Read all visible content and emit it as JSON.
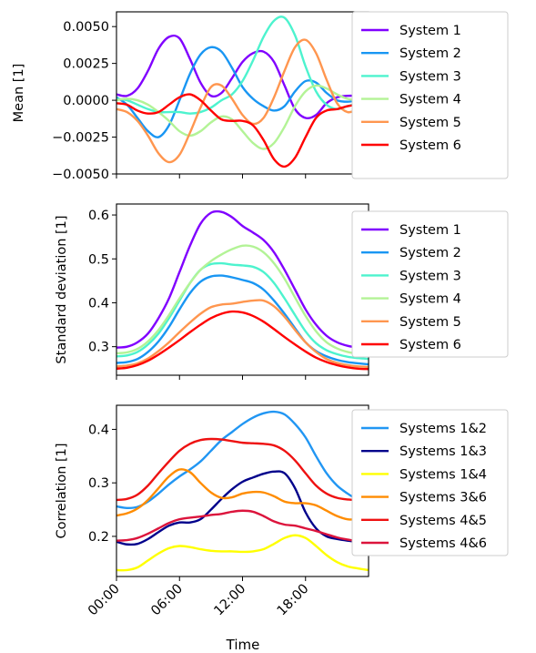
{
  "figure": {
    "xlabel": "Time"
  },
  "chart_data": [
    {
      "type": "line",
      "ylabel": "Mean [1]",
      "xlim": [
        0,
        24
      ],
      "ylim": [
        -0.005,
        0.006
      ],
      "yticks": [
        -0.005,
        -0.0025,
        0.0,
        0.0025,
        0.005
      ],
      "ytick_labels": [
        "−0.0050",
        "−0.0025",
        "0.0000",
        "0.0025",
        "0.0050"
      ],
      "xticks": [
        0,
        6,
        12,
        18
      ],
      "x": [
        0,
        1,
        2,
        3,
        4,
        5,
        6,
        7,
        8,
        9,
        10,
        11,
        12,
        13,
        14,
        15,
        16,
        17,
        18,
        19,
        20,
        21,
        22,
        23,
        24
      ],
      "legend_position": "outside-right",
      "series": [
        {
          "name": "System 1",
          "color": "#8000ff",
          "values": [
            0.0004,
            0.0003,
            0.0008,
            0.002,
            0.0035,
            0.0043,
            0.0042,
            0.0028,
            0.0012,
            0.0003,
            0.0005,
            0.0015,
            0.0026,
            0.0032,
            0.0033,
            0.0026,
            0.001,
            -0.0006,
            -0.0012,
            -0.001,
            -0.0002,
            0.0002,
            0.0003,
            0.0003,
            0.0003
          ]
        },
        {
          "name": "System 2",
          "color": "#1996f3",
          "values": [
            0.0002,
            -0.0003,
            -0.0012,
            -0.0021,
            -0.0025,
            -0.0017,
            0.0,
            0.0018,
            0.0031,
            0.0036,
            0.0033,
            0.0022,
            0.0009,
            0.0001,
            -0.0004,
            -0.0007,
            -0.0004,
            0.0006,
            0.0013,
            0.0012,
            0.0005,
            0.0,
            -0.0001,
            0.0,
            0.0001
          ]
        },
        {
          "name": "System 3",
          "color": "#4df3ce",
          "values": [
            0.0001,
            0.0,
            -0.0003,
            -0.0006,
            -0.0008,
            -0.0008,
            -0.0008,
            -0.0009,
            -0.0008,
            -0.0005,
            0.0,
            0.0004,
            0.0013,
            0.0027,
            0.0043,
            0.0054,
            0.0056,
            0.0044,
            0.0023,
            0.0006,
            -0.0003,
            -0.0006,
            -0.0004,
            -0.0002,
            0.0
          ]
        },
        {
          "name": "System 4",
          "color": "#b3f396",
          "values": [
            0.0,
            0.0001,
            0.0,
            -0.0003,
            -0.0008,
            -0.0014,
            -0.0021,
            -0.0024,
            -0.0021,
            -0.0015,
            -0.0011,
            -0.0013,
            -0.0021,
            -0.0029,
            -0.0033,
            -0.0029,
            -0.0018,
            -0.0004,
            0.0006,
            0.001,
            0.0008,
            0.0004,
            0.0001,
            0.0,
            0.0
          ]
        },
        {
          "name": "System 5",
          "color": "#ff964f",
          "values": [
            -0.0006,
            -0.0008,
            -0.0014,
            -0.0024,
            -0.0036,
            -0.0042,
            -0.0037,
            -0.0022,
            -0.0005,
            0.0009,
            0.001,
            0.0001,
            -0.001,
            -0.0016,
            -0.0012,
            0.0002,
            0.002,
            0.0036,
            0.0041,
            0.0032,
            0.0014,
            -0.0002,
            -0.0008,
            -0.0006,
            -0.0003
          ]
        },
        {
          "name": "System 6",
          "color": "#ff0000",
          "values": [
            -0.0002,
            -0.0003,
            -0.0007,
            -0.0009,
            -0.0008,
            -0.0003,
            0.0002,
            0.0004,
            0.0,
            -0.0007,
            -0.0013,
            -0.0014,
            -0.0014,
            -0.0017,
            -0.0027,
            -0.004,
            -0.0045,
            -0.0039,
            -0.0025,
            -0.0012,
            -0.0007,
            -0.0006,
            -0.0004,
            -0.0003,
            -0.0003
          ]
        }
      ]
    },
    {
      "type": "line",
      "ylabel": "Standard deviation [1]",
      "xlim": [
        0,
        24
      ],
      "ylim": [
        0.235,
        0.625
      ],
      "yticks": [
        0.3,
        0.4,
        0.5,
        0.6
      ],
      "ytick_labels": [
        "0.3",
        "0.4",
        "0.5",
        "0.6"
      ],
      "xticks": [
        0,
        6,
        12,
        18
      ],
      "x": [
        0,
        1,
        2,
        3,
        4,
        5,
        6,
        7,
        8,
        9,
        10,
        11,
        12,
        13,
        14,
        15,
        16,
        17,
        18,
        19,
        20,
        21,
        22,
        23,
        24
      ],
      "legend_position": "outside-right",
      "series": [
        {
          "name": "System 1",
          "color": "#8000ff",
          "values": [
            0.298,
            0.3,
            0.31,
            0.33,
            0.365,
            0.41,
            0.47,
            0.53,
            0.58,
            0.605,
            0.607,
            0.595,
            0.575,
            0.56,
            0.543,
            0.515,
            0.475,
            0.43,
            0.385,
            0.35,
            0.325,
            0.31,
            0.302,
            0.298,
            0.296
          ]
        },
        {
          "name": "System 2",
          "color": "#1996f3",
          "values": [
            0.263,
            0.265,
            0.272,
            0.288,
            0.312,
            0.345,
            0.385,
            0.422,
            0.448,
            0.46,
            0.462,
            0.458,
            0.452,
            0.445,
            0.43,
            0.405,
            0.375,
            0.342,
            0.31,
            0.29,
            0.278,
            0.27,
            0.265,
            0.262,
            0.26
          ]
        },
        {
          "name": "System 3",
          "color": "#4df3ce",
          "values": [
            0.278,
            0.28,
            0.288,
            0.305,
            0.33,
            0.365,
            0.405,
            0.445,
            0.475,
            0.488,
            0.49,
            0.487,
            0.485,
            0.482,
            0.47,
            0.445,
            0.41,
            0.372,
            0.335,
            0.308,
            0.292,
            0.283,
            0.277,
            0.274,
            0.272
          ]
        },
        {
          "name": "System 4",
          "color": "#b3f396",
          "values": [
            0.285,
            0.287,
            0.295,
            0.312,
            0.338,
            0.372,
            0.41,
            0.445,
            0.475,
            0.495,
            0.51,
            0.522,
            0.53,
            0.528,
            0.515,
            0.49,
            0.455,
            0.412,
            0.37,
            0.335,
            0.31,
            0.296,
            0.288,
            0.284,
            0.282
          ]
        },
        {
          "name": "System 5",
          "color": "#ff964f",
          "values": [
            0.255,
            0.257,
            0.262,
            0.273,
            0.29,
            0.31,
            0.333,
            0.355,
            0.375,
            0.39,
            0.396,
            0.398,
            0.402,
            0.405,
            0.405,
            0.392,
            0.368,
            0.338,
            0.31,
            0.288,
            0.272,
            0.263,
            0.258,
            0.255,
            0.254
          ]
        },
        {
          "name": "System 6",
          "color": "#ff0000",
          "values": [
            0.25,
            0.252,
            0.258,
            0.268,
            0.282,
            0.298,
            0.315,
            0.333,
            0.35,
            0.365,
            0.375,
            0.38,
            0.378,
            0.37,
            0.357,
            0.34,
            0.322,
            0.305,
            0.289,
            0.275,
            0.265,
            0.258,
            0.253,
            0.25,
            0.249
          ]
        }
      ]
    },
    {
      "type": "line",
      "ylabel": "Correlation [1]",
      "xlim": [
        0,
        24
      ],
      "ylim": [
        0.125,
        0.445
      ],
      "yticks": [
        0.2,
        0.3,
        0.4
      ],
      "ytick_labels": [
        "0.2",
        "0.3",
        "0.4"
      ],
      "xticks": [
        0,
        6,
        12,
        18
      ],
      "xtick_labels": [
        "00:00",
        "06:00",
        "12:00",
        "18:00"
      ],
      "x": [
        0,
        1,
        2,
        3,
        4,
        5,
        6,
        7,
        8,
        9,
        10,
        11,
        12,
        13,
        14,
        15,
        16,
        17,
        18,
        19,
        20,
        21,
        22,
        23,
        24
      ],
      "legend_position": "outside-right",
      "series": [
        {
          "name": "Systems 1&2",
          "color": "#2196f3",
          "values": [
            0.256,
            0.253,
            0.255,
            0.265,
            0.28,
            0.297,
            0.312,
            0.325,
            0.34,
            0.36,
            0.38,
            0.395,
            0.41,
            0.422,
            0.43,
            0.433,
            0.428,
            0.41,
            0.385,
            0.35,
            0.318,
            0.295,
            0.28,
            0.268,
            0.258
          ]
        },
        {
          "name": "Systems 1&3",
          "color": "#00008b",
          "values": [
            0.19,
            0.185,
            0.186,
            0.195,
            0.208,
            0.22,
            0.226,
            0.226,
            0.232,
            0.25,
            0.27,
            0.288,
            0.302,
            0.31,
            0.317,
            0.321,
            0.318,
            0.29,
            0.245,
            0.215,
            0.2,
            0.195,
            0.192,
            0.19,
            0.188
          ]
        },
        {
          "name": "Systems 1&4",
          "color": "#ffff00",
          "values": [
            0.137,
            0.137,
            0.142,
            0.155,
            0.168,
            0.178,
            0.182,
            0.18,
            0.176,
            0.173,
            0.172,
            0.172,
            0.171,
            0.172,
            0.176,
            0.186,
            0.197,
            0.202,
            0.197,
            0.182,
            0.165,
            0.152,
            0.144,
            0.14,
            0.137
          ]
        },
        {
          "name": "Systems 3&6",
          "color": "#ff8c00",
          "values": [
            0.239,
            0.243,
            0.252,
            0.268,
            0.29,
            0.312,
            0.325,
            0.32,
            0.3,
            0.282,
            0.272,
            0.273,
            0.28,
            0.283,
            0.282,
            0.275,
            0.265,
            0.262,
            0.262,
            0.258,
            0.248,
            0.238,
            0.232,
            0.232,
            0.235
          ]
        },
        {
          "name": "Systems 4&5",
          "color": "#ee1111",
          "values": [
            0.268,
            0.27,
            0.278,
            0.295,
            0.318,
            0.34,
            0.36,
            0.373,
            0.38,
            0.382,
            0.381,
            0.378,
            0.375,
            0.374,
            0.373,
            0.37,
            0.36,
            0.342,
            0.318,
            0.295,
            0.28,
            0.272,
            0.269,
            0.268,
            0.268
          ]
        },
        {
          "name": "Systems 4&6",
          "color": "#dc143c",
          "values": [
            0.192,
            0.193,
            0.197,
            0.205,
            0.215,
            0.225,
            0.232,
            0.235,
            0.237,
            0.24,
            0.242,
            0.246,
            0.248,
            0.246,
            0.238,
            0.228,
            0.222,
            0.22,
            0.215,
            0.21,
            0.204,
            0.198,
            0.194,
            0.191,
            0.19
          ]
        }
      ]
    }
  ]
}
